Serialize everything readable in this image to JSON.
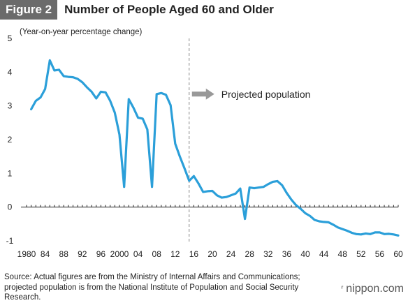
{
  "header": {
    "figure_label": "Figure 2",
    "title": "Number of People Aged 60 and Older"
  },
  "source_text": "Source: Actual figures are from the Ministry of Internal Affairs and Communications; projected population is from the National Institute of Population and Social Security Research.",
  "brand": {
    "name": "nippon.com",
    "icon": "bracket-logo-icon"
  },
  "colors": {
    "line": "#2b9fd9",
    "arrow": "#999999",
    "divider": "#888888",
    "baseline": "#222222"
  },
  "chart_data": {
    "type": "line",
    "ylabel": "(Year-on-year percentage change)",
    "ylim": [
      -1,
      5
    ],
    "yticks": [
      5,
      4,
      3,
      2,
      1,
      0,
      -1
    ],
    "xlim": [
      1980,
      2060
    ],
    "xtick_positions": [
      1980,
      1984,
      1988,
      1992,
      1996,
      2000,
      2004,
      2008,
      2012,
      2016,
      2020,
      2024,
      2028,
      2032,
      2036,
      2040,
      2044,
      2048,
      2052,
      2056,
      2060
    ],
    "xtick_labels": [
      "1980",
      "84",
      "88",
      "92",
      "96",
      "2000",
      "04",
      "08",
      "12",
      "16",
      "20",
      "24",
      "28",
      "32",
      "36",
      "40",
      "44",
      "48",
      "52",
      "56",
      "60"
    ],
    "grid": false,
    "projection_start": 2015,
    "annotation": "Projected population",
    "series": [
      {
        "x": [
          1981,
          1982,
          1983,
          1984,
          1985,
          1986,
          1987,
          1988,
          1989,
          1990,
          1991,
          1992,
          1993,
          1994,
          1995,
          1996,
          1997,
          1998,
          1999,
          2000,
          2001,
          2002,
          2003,
          2004,
          2005,
          2006,
          2007,
          2008,
          2009,
          2010,
          2011,
          2012,
          2013,
          2014,
          2015,
          2016,
          2017,
          2018,
          2019,
          2020,
          2021,
          2022,
          2023,
          2024,
          2025,
          2026,
          2027,
          2028,
          2029,
          2030,
          2031,
          2032,
          2033,
          2034,
          2035,
          2036,
          2037,
          2038,
          2039,
          2040,
          2041,
          2042,
          2043,
          2044,
          2045,
          2046,
          2047,
          2048,
          2049,
          2050,
          2051,
          2052,
          2053,
          2054,
          2055,
          2056,
          2057,
          2058,
          2059,
          2060
        ],
        "y": [
          2.9,
          3.15,
          3.25,
          3.5,
          4.35,
          4.05,
          4.07,
          3.88,
          3.86,
          3.85,
          3.8,
          3.7,
          3.55,
          3.42,
          3.22,
          3.42,
          3.4,
          3.15,
          2.8,
          2.15,
          0.6,
          3.2,
          2.95,
          2.65,
          2.62,
          2.3,
          0.6,
          3.35,
          3.38,
          3.33,
          3.02,
          1.88,
          1.5,
          1.15,
          0.78,
          0.92,
          0.7,
          0.45,
          0.47,
          0.48,
          0.35,
          0.28,
          0.3,
          0.35,
          0.4,
          0.55,
          -0.35,
          0.58,
          0.56,
          0.58,
          0.6,
          0.68,
          0.75,
          0.77,
          0.65,
          0.42,
          0.22,
          0.06,
          -0.05,
          -0.18,
          -0.26,
          -0.38,
          -0.42,
          -0.44,
          -0.45,
          -0.52,
          -0.6,
          -0.65,
          -0.7,
          -0.76,
          -0.8,
          -0.81,
          -0.78,
          -0.8,
          -0.75,
          -0.75,
          -0.8,
          -0.79,
          -0.81,
          -0.84
        ]
      }
    ]
  }
}
